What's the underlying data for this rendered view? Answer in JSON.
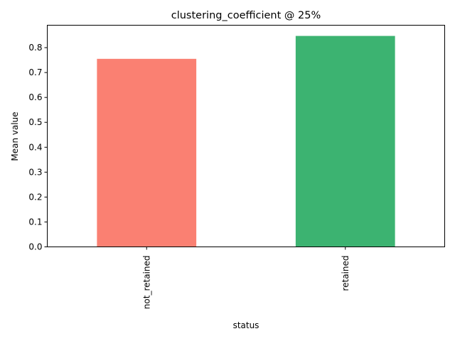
{
  "chart_data": {
    "type": "bar",
    "title": "clustering_coefficient @ 25%",
    "xlabel": "status",
    "ylabel": "Mean value",
    "categories": [
      "not_retained",
      "retained"
    ],
    "values": [
      0.755,
      0.847
    ],
    "colors": [
      "#fa8072",
      "#3cb371"
    ],
    "ylim": [
      0,
      0.89
    ],
    "yticks": [
      0.0,
      0.1,
      0.2,
      0.3,
      0.4,
      0.5,
      0.6,
      0.7,
      0.8
    ],
    "ytick_labels": [
      "0.0",
      "0.1",
      "0.2",
      "0.3",
      "0.4",
      "0.5",
      "0.6",
      "0.7",
      "0.8"
    ],
    "grid": false,
    "legend": "none"
  }
}
